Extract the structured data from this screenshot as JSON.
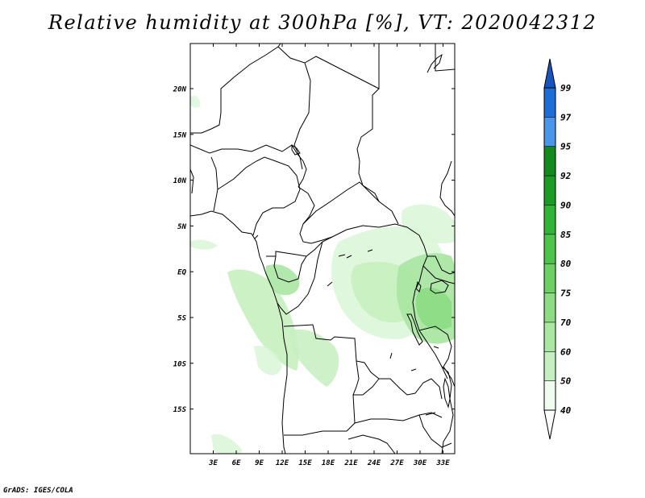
{
  "title": "Relative humidity at 300hPa [%], VT: 2020042312",
  "credit": "GrADS: IGES/COLA",
  "map": {
    "variable": "Relative humidity",
    "level": "300hPa",
    "units": "%",
    "valid_time": "2020042312",
    "lon_range": [
      0,
      34.5
    ],
    "lat_range": [
      -20,
      25
    ],
    "lat_ticks": [
      "20N",
      "15N",
      "10N",
      "5N",
      "EQ",
      "5S",
      "10S",
      "15S"
    ],
    "lon_ticks": [
      "3E",
      "6E",
      "9E",
      "12E",
      "15E",
      "18E",
      "21E",
      "24E",
      "27E",
      "30E",
      "33E"
    ]
  },
  "colorbar": {
    "levels": [
      "40",
      "50",
      "60",
      "70",
      "75",
      "80",
      "85",
      "90",
      "92",
      "95",
      "97",
      "99"
    ],
    "colors": {
      "c1": "#f0fcef",
      "c2": "#dcf6d8",
      "c3": "#c6efbf",
      "c4": "#abe6a3",
      "c5": "#8ddc84",
      "c6": "#6dd065",
      "c7": "#4fc44a",
      "c8": "#34b436",
      "c9": "#1d9b25",
      "c10": "#138a1e",
      "c11": "#4a96ea",
      "c12": "#1e6cd8",
      "c13": "#1655c0"
    }
  }
}
